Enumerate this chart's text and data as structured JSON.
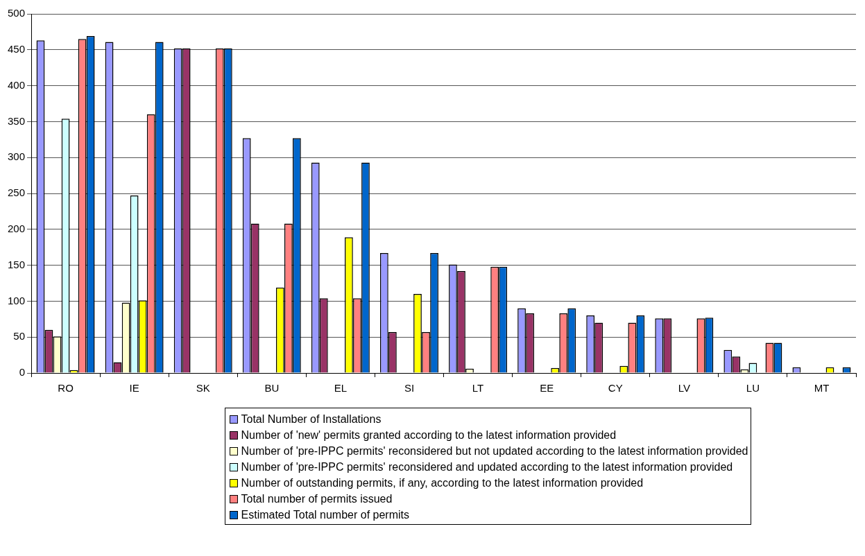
{
  "chart_data": {
    "type": "bar",
    "categories": [
      "RO",
      "IE",
      "SK",
      "BU",
      "EL",
      "SI",
      "LT",
      "EE",
      "CY",
      "LV",
      "LU",
      "MT"
    ],
    "series": [
      {
        "name": "Total Number of Installations",
        "color": "#9999ff",
        "values": [
          463,
          461,
          452,
          327,
          293,
          167,
          151,
          90,
          80,
          76,
          32,
          8
        ]
      },
      {
        "name": "Number of 'new' permits granted according to the latest information provided",
        "color": "#993366",
        "values": [
          60,
          15,
          452,
          208,
          104,
          57,
          142,
          83,
          70,
          76,
          23,
          null
        ]
      },
      {
        "name": "Number of 'pre-IPPC permits' reconsidered but not updated according to the latest information provided",
        "color": "#ffffcc",
        "values": [
          51,
          98,
          null,
          null,
          null,
          null,
          6,
          null,
          null,
          null,
          5,
          null
        ]
      },
      {
        "name": "Number of 'pre-IPPC permits' reconsidered and updated according to the latest information provided",
        "color": "#ccffff",
        "values": [
          354,
          247,
          null,
          null,
          null,
          null,
          null,
          null,
          null,
          null,
          14,
          null
        ]
      },
      {
        "name": "Number of outstanding permits, if any, according to the latest information provided",
        "color": "#ffff00",
        "values": [
          4,
          101,
          null,
          119,
          189,
          110,
          null,
          7,
          10,
          null,
          null,
          8
        ]
      },
      {
        "name": "Total number of permits issued",
        "color": "#ff8080",
        "values": [
          465,
          360,
          452,
          208,
          104,
          57,
          148,
          83,
          70,
          76,
          42,
          null
        ]
      },
      {
        "name": "Estimated Total number of permits",
        "color": "#0066cc",
        "values": [
          469,
          461,
          452,
          327,
          293,
          167,
          148,
          90,
          80,
          77,
          42,
          8
        ]
      }
    ],
    "ylim": [
      0,
      500
    ],
    "yticks": [
      0,
      50,
      100,
      150,
      200,
      250,
      300,
      350,
      400,
      450,
      500
    ],
    "grid": "y",
    "legend": "bottom"
  }
}
